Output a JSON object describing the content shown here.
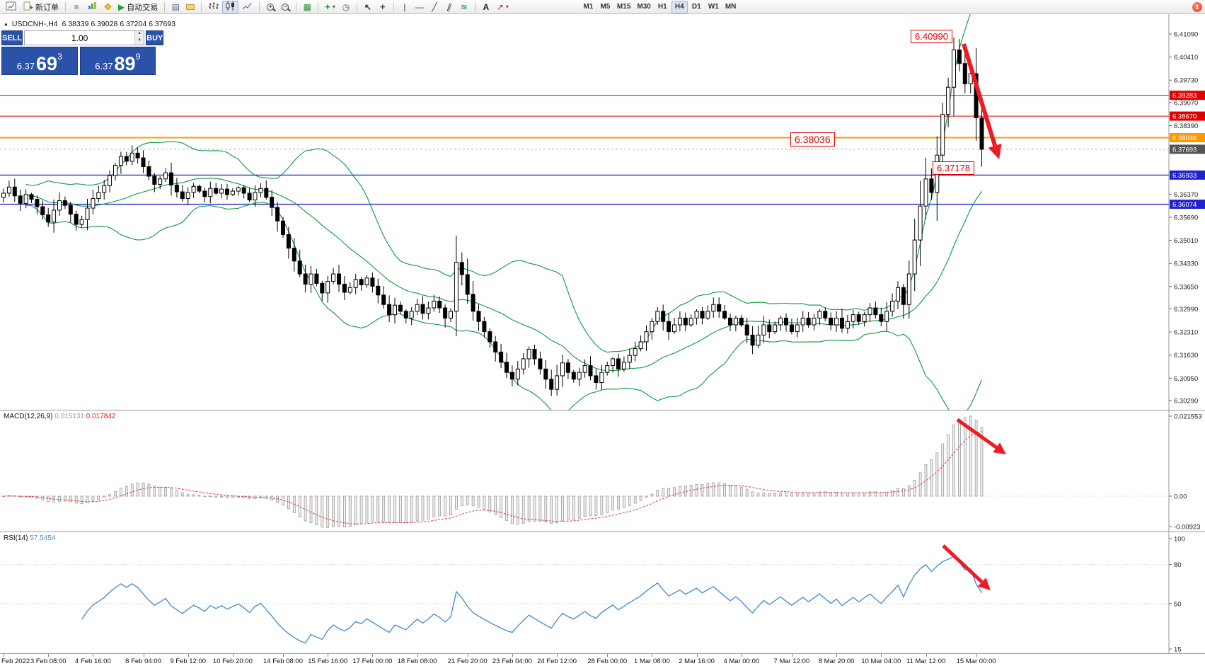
{
  "toolbar": {
    "new_order_label": "新订单",
    "autotrading_label": "自动交易",
    "text_tool_label": "A",
    "timeframes": [
      "M1",
      "M5",
      "M15",
      "M30",
      "H1",
      "H4",
      "D1",
      "W1",
      "MN"
    ],
    "active_timeframe": "H4",
    "notification_count": "1"
  },
  "symbol_header": {
    "marker": "▲",
    "symbol": "USDCNH-,H4",
    "ohlc": "6.38339 6.39028 6.37204 6.37693"
  },
  "trade_panel": {
    "sell_label": "SELL",
    "buy_label": "BUY",
    "volume": "1.00",
    "sell_price_main": "6.37",
    "sell_price_pips": "69",
    "sell_price_point": "3",
    "buy_price_main": "6.37",
    "buy_price_pips": "89",
    "buy_price_point": "9"
  },
  "annotations": {
    "peak_label": "6.40990",
    "mid_label": "6.38036",
    "low_label": "6.37178"
  },
  "price_axis": [
    {
      "label": "6.41090",
      "price": 6.4109,
      "type": "tick"
    },
    {
      "label": "6.40410",
      "price": 6.4041,
      "type": "tick"
    },
    {
      "label": "6.39730",
      "price": 6.3973,
      "type": "tick"
    },
    {
      "label": "6.39283",
      "price": 6.39283,
      "type": "red"
    },
    {
      "label": "6.39070",
      "price": 6.3907,
      "type": "tick"
    },
    {
      "label": "6.38670",
      "price": 6.3867,
      "type": "red"
    },
    {
      "label": "6.38390",
      "price": 6.3839,
      "type": "tick"
    },
    {
      "label": "6.38036",
      "price": 6.38036,
      "type": "orange"
    },
    {
      "label": "6.37693",
      "price": 6.37693,
      "type": "current"
    },
    {
      "label": "6.36933",
      "price": 6.36933,
      "type": "blue"
    },
    {
      "label": "6.36370",
      "price": 6.3637,
      "type": "tick"
    },
    {
      "label": "6.36074",
      "price": 6.36074,
      "type": "blue"
    },
    {
      "label": "6.35690",
      "price": 6.3569,
      "type": "tick"
    },
    {
      "label": "6.35010",
      "price": 6.3501,
      "type": "tick"
    },
    {
      "label": "6.34330",
      "price": 6.3433,
      "type": "tick"
    },
    {
      "label": "6.33650",
      "price": 6.3365,
      "type": "tick"
    },
    {
      "label": "6.32990",
      "price": 6.3299,
      "type": "tick"
    },
    {
      "label": "6.32310",
      "price": 6.3231,
      "type": "tick"
    },
    {
      "label": "6.31630",
      "price": 6.3163,
      "type": "tick"
    },
    {
      "label": "6.30950",
      "price": 6.3095,
      "type": "tick"
    },
    {
      "label": "6.30290",
      "price": 6.3029,
      "type": "tick"
    }
  ],
  "hlines": [
    {
      "price": 6.39283,
      "color": "#e00000",
      "width": 1,
      "style": "solid"
    },
    {
      "price": 6.3867,
      "color": "#e00000",
      "width": 1,
      "style": "solid"
    },
    {
      "price": 6.38036,
      "color": "#ff9800",
      "width": 2,
      "style": "solid"
    },
    {
      "price": 6.36933,
      "color": "#2222cc",
      "width": 1.3,
      "style": "solid"
    },
    {
      "price": 6.36074,
      "color": "#2222cc",
      "width": 1.3,
      "style": "solid"
    },
    {
      "price": 6.37693,
      "color": "#b0b0b0",
      "width": 1,
      "style": "dash"
    }
  ],
  "macd": {
    "name": "MACD(12,26,9)",
    "main": "0.015131",
    "signal": "0.017842",
    "axis": [
      "0.021553",
      "0.00",
      "-0.00923"
    ]
  },
  "rsi": {
    "name": "RSI(14)",
    "value": "57.5454",
    "axis": [
      "100",
      "80",
      "50",
      "15"
    ],
    "levels": [
      80,
      50
    ]
  },
  "time_axis": [
    {
      "label": "Feb 2022",
      "index": 0
    },
    {
      "label": "3 Feb 08:00",
      "index": 8
    },
    {
      "label": "4 Feb 16:00",
      "index": 16
    },
    {
      "label": "8 Feb 04:00",
      "index": 25
    },
    {
      "label": "9 Feb 12:00",
      "index": 33
    },
    {
      "label": "10 Feb 20:00",
      "index": 41
    },
    {
      "label": "14 Feb 08:00",
      "index": 50
    },
    {
      "label": "15 Feb 16:00",
      "index": 58
    },
    {
      "label": "17 Feb 00:00",
      "index": 66
    },
    {
      "label": "18 Feb 08:00",
      "index": 74
    },
    {
      "label": "21 Feb 20:00",
      "index": 83
    },
    {
      "label": "23 Feb 04:00",
      "index": 91
    },
    {
      "label": "24 Feb 12:00",
      "index": 99
    },
    {
      "label": "28 Feb 00:00",
      "index": 108
    },
    {
      "label": "1 Mar 08:00",
      "index": 116
    },
    {
      "label": "2 Mar 16:00",
      "index": 124
    },
    {
      "label": "4 Mar 00:00",
      "index": 132
    },
    {
      "label": "7 Mar 12:00",
      "index": 141
    },
    {
      "label": "8 Mar 20:00",
      "index": 149
    },
    {
      "label": "10 Mar 04:00",
      "index": 157
    },
    {
      "label": "11 Mar 12:00",
      "index": 165
    },
    {
      "label": "15 Mar 00:00",
      "index": 174
    }
  ],
  "chart_data": {
    "type": "candlestick",
    "symbol": "USDCNH-",
    "timeframe": "H4",
    "current_bar": {
      "open": 6.38339,
      "high": 6.39028,
      "low": 6.37204,
      "close": 6.37693
    },
    "price_axis_range": [
      6.3029,
      6.4109
    ],
    "overlays": [
      "Bollinger Bands"
    ],
    "horizontal_lines": [
      6.39283,
      6.3867,
      6.38036,
      6.36933,
      6.36074
    ],
    "price_labels": [
      "6.40990",
      "6.38036",
      "6.37178"
    ],
    "indicators": [
      {
        "name": "MACD",
        "params": "12,26,9",
        "values": [
          0.015131,
          0.017842
        ]
      },
      {
        "name": "RSI",
        "params": "14",
        "value": 57.5454
      }
    ],
    "closes": [
      6.364,
      6.3658,
      6.3632,
      6.361,
      6.3636,
      6.3622,
      6.36,
      6.3576,
      6.3555,
      6.359,
      6.3618,
      6.3604,
      6.3578,
      6.3548,
      6.3562,
      6.3596,
      6.3624,
      6.3642,
      6.3662,
      6.3692,
      6.3722,
      6.3748,
      6.3734,
      6.3758,
      6.3744,
      6.3718,
      6.369,
      6.3666,
      6.3682,
      6.37,
      6.3664,
      6.3644,
      6.3624,
      6.3642,
      6.366,
      6.3646,
      6.363,
      6.3654,
      6.364,
      6.3652,
      6.3636,
      6.3646,
      6.3656,
      6.364,
      6.362,
      6.3642,
      6.3654,
      6.3628,
      6.3598,
      6.3558,
      6.3518,
      6.3478,
      6.344,
      6.3402,
      6.3372,
      6.3402,
      6.3374,
      6.3346,
      6.338,
      6.3402,
      6.3372,
      6.3348,
      6.3362,
      6.3386,
      6.337,
      6.339,
      6.3366,
      6.334,
      6.3312,
      6.3282,
      6.331,
      6.3292,
      6.3272,
      6.3292,
      6.3312,
      6.3286,
      6.3302,
      6.3322,
      6.3302,
      6.3272,
      6.3292,
      6.3436,
      6.34,
      6.3342,
      6.3292,
      6.3262,
      6.3232,
      6.3202,
      6.3172,
      6.3142,
      6.3112,
      6.3092,
      6.3122,
      6.3152,
      6.318,
      6.3152,
      6.3122,
      6.3092,
      6.3062,
      6.3102,
      6.314,
      6.3112,
      6.3092,
      6.3112,
      6.3132,
      6.3102,
      6.3082,
      6.3112,
      6.3132,
      6.3152,
      6.3122,
      6.3142,
      6.3162,
      6.3182,
      6.3202,
      6.3232,
      6.3262,
      6.3292,
      6.3262,
      6.3232,
      6.3252,
      6.3272,
      6.3252,
      6.3272,
      6.3292,
      6.3272,
      6.3292,
      6.3312,
      6.3292,
      6.3272,
      6.3252,
      6.3272,
      6.3252,
      6.3222,
      6.3192,
      6.3222,
      6.3252,
      6.3232,
      6.3252,
      6.3272,
      6.3252,
      6.3232,
      6.3252,
      6.3272,
      6.3252,
      6.3272,
      6.3292,
      6.3272,
      6.3252,
      6.3272,
      6.3242,
      6.3262,
      6.3282,
      6.3262,
      6.3282,
      6.3302,
      6.3282,
      6.3262,
      6.3292,
      6.3322,
      6.3362,
      6.3312,
      6.3402,
      6.3502,
      6.3602,
      6.3682,
      6.3642,
      6.3752,
      6.3872,
      6.3952,
      6.4062,
      6.4022,
      6.3962,
      6.3992,
      6.3862,
      6.37693
    ]
  }
}
